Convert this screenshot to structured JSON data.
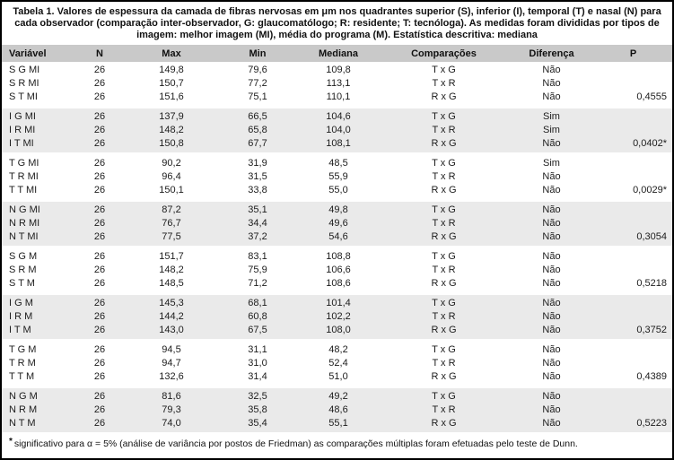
{
  "title": "Tabela 1. Valores de espessura da camada de fibras nervosas em μm nos quadrantes superior (S), inferior (I), temporal (T) e nasal (N) para cada observador (comparação inter-observador, G: glaucomatólogo; R: residente; T: tecnóloga). As medidas foram divididas por tipos de imagem: melhor imagem (MI), média do programa (M). Estatística descritiva: mediana",
  "table": {
    "columns": [
      "Variável",
      "N",
      "Max",
      "Min",
      "Mediana",
      "Comparações",
      "Diferença",
      "P"
    ],
    "column_keys": [
      "variavel",
      "n",
      "max",
      "min",
      "mediana",
      "comparacoes",
      "diferenca",
      "p"
    ],
    "groups": [
      {
        "rows": [
          [
            "S G MI",
            "26",
            "149,8",
            "79,6",
            "109,8",
            "T x G",
            "Não",
            ""
          ],
          [
            "S R MI",
            "26",
            "150,7",
            "77,2",
            "113,1",
            "T x R",
            "Não",
            ""
          ],
          [
            "S T MI",
            "26",
            "151,6",
            "75,1",
            "110,1",
            "R x G",
            "Não",
            "0,4555"
          ]
        ]
      },
      {
        "rows": [
          [
            "I G MI",
            "26",
            "137,9",
            "66,5",
            "104,6",
            "T x G",
            "Sim",
            ""
          ],
          [
            "I R MI",
            "26",
            "148,2",
            "65,8",
            "104,0",
            "T x R",
            "Sim",
            ""
          ],
          [
            "I T MI",
            "26",
            "150,8",
            "67,7",
            "108,1",
            "R x G",
            "Não",
            "0,0402*"
          ]
        ]
      },
      {
        "rows": [
          [
            "T G MI",
            "26",
            "90,2",
            "31,9",
            "48,5",
            "T x G",
            "Sim",
            ""
          ],
          [
            "T R MI",
            "26",
            "96,4",
            "31,5",
            "55,9",
            "T x R",
            "Não",
            ""
          ],
          [
            "T T MI",
            "26",
            "150,1",
            "33,8",
            "55,0",
            "R x G",
            "Não",
            "0,0029*"
          ]
        ]
      },
      {
        "rows": [
          [
            "N G MI",
            "26",
            "87,2",
            "35,1",
            "49,8",
            "T x G",
            "Não",
            ""
          ],
          [
            "N R MI",
            "26",
            "76,7",
            "34,4",
            "49,6",
            "T x R",
            "Não",
            ""
          ],
          [
            "N T MI",
            "26",
            "77,5",
            "37,2",
            "54,6",
            "R x G",
            "Não",
            "0,3054"
          ]
        ]
      },
      {
        "rows": [
          [
            "S G M",
            "26",
            "151,7",
            "83,1",
            "108,8",
            "T x G",
            "Não",
            ""
          ],
          [
            "S R M",
            "26",
            "148,2",
            "75,9",
            "106,6",
            "T x R",
            "Não",
            ""
          ],
          [
            "S T M",
            "26",
            "148,5",
            "71,2",
            "108,6",
            "R x G",
            "Não",
            "0,5218"
          ]
        ]
      },
      {
        "rows": [
          [
            "I G M",
            "26",
            "145,3",
            "68,1",
            "101,4",
            "T x G",
            "Não",
            ""
          ],
          [
            "I R M",
            "26",
            "144,2",
            "60,8",
            "102,2",
            "T x R",
            "Não",
            ""
          ],
          [
            "I T M",
            "26",
            "143,0",
            "67,5",
            "108,0",
            "R x G",
            "Não",
            "0,3752"
          ]
        ]
      },
      {
        "rows": [
          [
            "T G M",
            "26",
            "94,5",
            "31,1",
            "48,2",
            "T x G",
            "Não",
            ""
          ],
          [
            "T R M",
            "26",
            "94,7",
            "31,0",
            "52,4",
            "T x R",
            "Não",
            ""
          ],
          [
            "T T M",
            "26",
            "132,6",
            "31,4",
            "51,0",
            "R x G",
            "Não",
            "0,4389"
          ]
        ]
      },
      {
        "rows": [
          [
            "N G M",
            "26",
            "81,6",
            "32,5",
            "49,2",
            "T x G",
            "Não",
            ""
          ],
          [
            "N R M",
            "26",
            "79,3",
            "35,8",
            "48,6",
            "T x R",
            "Não",
            ""
          ],
          [
            "N T M",
            "26",
            "74,0",
            "35,4",
            "55,1",
            "R x G",
            "Não",
            "0,5223"
          ]
        ]
      }
    ]
  },
  "footnote": {
    "marker": "*",
    "text": "significativo para α = 5% (análise de variância por postos de Friedman) as comparações múltiplas foram efetuadas pelo teste de Dunn."
  },
  "colors": {
    "header_bg": "#c9c9c9",
    "shade_bg": "#eaeaea",
    "border": "#000000"
  }
}
